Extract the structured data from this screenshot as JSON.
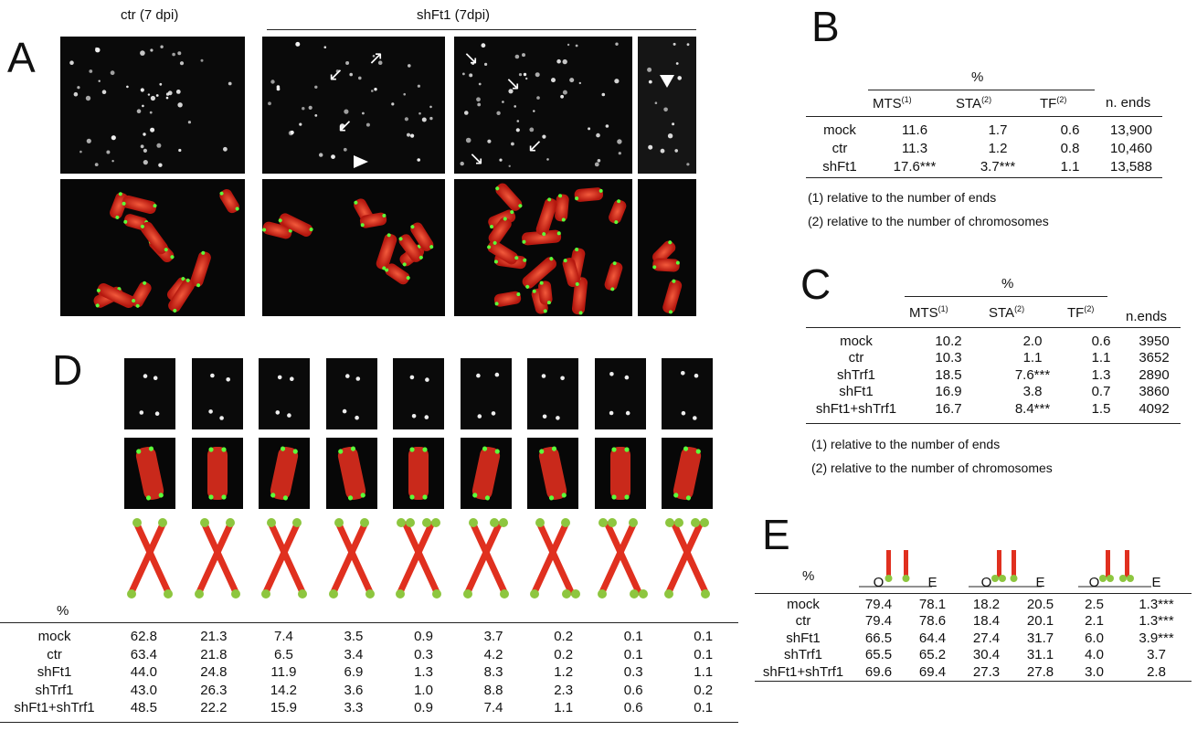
{
  "panel_A": {
    "letter": "A",
    "labels": {
      "ctr": "ctr (7 dpi)",
      "shft1": "shFt1 (7dpi)"
    }
  },
  "panel_B": {
    "letter": "B",
    "percent": "%",
    "columns": [
      "MTS",
      "STA",
      "TF",
      "n. ends"
    ],
    "column_sups": [
      "(1)",
      "(2)",
      "(2)",
      ""
    ],
    "rows": [
      {
        "label": "mock",
        "values": [
          "11.6",
          "1.7",
          "0.6",
          "13,900"
        ]
      },
      {
        "label": "ctr",
        "values": [
          "11.3",
          "1.2",
          "0.8",
          "10,460"
        ]
      },
      {
        "label": "shFt1",
        "values": [
          "17.6***",
          "3.7***",
          "1.1",
          "13,588"
        ]
      }
    ],
    "notes": [
      "(1) relative to the number of ends",
      "(2) relative to the number of chromosomes"
    ]
  },
  "panel_C": {
    "letter": "C",
    "percent": "%",
    "columns": [
      "MTS",
      "STA",
      "TF",
      "n.ends"
    ],
    "column_sups": [
      "(1)",
      "(2)",
      "(2)",
      ""
    ],
    "rows": [
      {
        "label": "mock",
        "values": [
          "10.2",
          "2.0",
          "0.6",
          "3950"
        ]
      },
      {
        "label": "ctr",
        "values": [
          "10.3",
          "1.1",
          "1.1",
          "3652"
        ]
      },
      {
        "label": "shTrf1",
        "values": [
          "18.5",
          "7.6***",
          "1.3",
          "2890"
        ]
      },
      {
        "label": "shFt1",
        "values": [
          "16.9",
          "3.8",
          "0.7",
          "3860"
        ]
      },
      {
        "label": "shFt1+shTrf1",
        "values": [
          "16.7",
          "8.4***",
          "1.5",
          "4092"
        ]
      }
    ],
    "notes": [
      "(1) relative to the number of ends",
      "(2) relative to the number of chromosomes"
    ]
  },
  "panel_D": {
    "letter": "D",
    "percent": "%",
    "rows": [
      {
        "label": "mock",
        "values": [
          "62.8",
          "21.3",
          "7.4",
          "3.5",
          "0.9",
          "3.7",
          "0.2",
          "0.1",
          "0.1"
        ]
      },
      {
        "label": "ctr",
        "values": [
          "63.4",
          "21.8",
          "6.5",
          "3.4",
          "0.3",
          "4.2",
          "0.2",
          "0.1",
          "0.1"
        ]
      },
      {
        "label": "shFt1",
        "values": [
          "44.0",
          "24.8",
          "11.9",
          "6.9",
          "1.3",
          "8.3",
          "1.2",
          "0.3",
          "1.1"
        ]
      },
      {
        "label": "shTrf1",
        "values": [
          "43.0",
          "26.3",
          "14.2",
          "3.6",
          "1.0",
          "8.8",
          "2.3",
          "0.6",
          "0.2"
        ]
      },
      {
        "label": "shFt1+shTrf1",
        "values": [
          "48.5",
          "22.2",
          "15.9",
          "3.3",
          "0.9",
          "7.4",
          "1.1",
          "0.6",
          "0.1"
        ]
      }
    ],
    "diagram_signal_patterns": [
      [
        2,
        2,
        2,
        2
      ],
      [
        2,
        2,
        2,
        2
      ],
      [
        2,
        2,
        2,
        2
      ],
      [
        2,
        2,
        2,
        2
      ],
      [
        3,
        3,
        2,
        2
      ],
      [
        2,
        3,
        2,
        2
      ],
      [
        2,
        2,
        2,
        3
      ],
      [
        3,
        2,
        2,
        3
      ],
      [
        3,
        3,
        2,
        2
      ]
    ]
  },
  "panel_E": {
    "letter": "E",
    "percent": "%",
    "subcolumns": [
      "O",
      "E",
      "O",
      "E",
      "O",
      "E"
    ],
    "rows": [
      {
        "label": "mock",
        "values": [
          "79.4",
          "78.1",
          "18.2",
          "20.5",
          "2.5",
          "1.3***"
        ]
      },
      {
        "label": "ctr",
        "values": [
          "79.4",
          "78.6",
          "18.4",
          "20.1",
          "2.1",
          "1.3***"
        ]
      },
      {
        "label": "shFt1",
        "values": [
          "66.5",
          "64.4",
          "27.4",
          "31.7",
          "6.0",
          "3.9***"
        ]
      },
      {
        "label": "shTrf1",
        "values": [
          "65.5",
          "65.2",
          "30.4",
          "31.1",
          "4.0",
          "3.7"
        ]
      },
      {
        "label": "shFt1+shTrf1",
        "values": [
          "69.6",
          "69.4",
          "27.3",
          "27.8",
          "3.0",
          "2.8"
        ]
      }
    ]
  },
  "colors": {
    "chromosome_red": "#e0301f",
    "telomere_green": "#8dc63f",
    "fish_green": "#5cff3a"
  }
}
